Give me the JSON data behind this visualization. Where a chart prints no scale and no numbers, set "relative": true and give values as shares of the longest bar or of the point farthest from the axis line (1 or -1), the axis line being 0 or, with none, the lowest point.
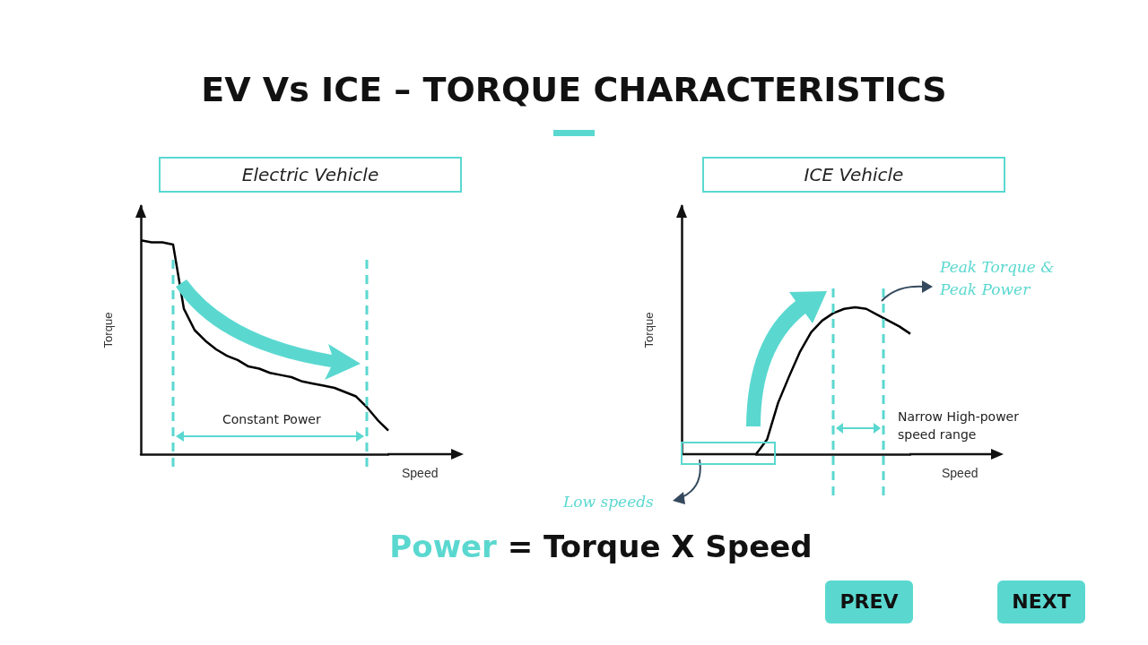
{
  "chart_data": [
    {
      "type": "line",
      "title": "Electric Vehicle",
      "xlabel": "Speed",
      "ylabel": "Torque",
      "relative": true,
      "grid": false,
      "marker": "none",
      "line_style": "solid",
      "categories": [
        null,
        null,
        null,
        null,
        null,
        null,
        null,
        null,
        null,
        null,
        null,
        null,
        null,
        null,
        null,
        null,
        null,
        null,
        null,
        null,
        null,
        null,
        null,
        null
      ],
      "series": [
        {
          "color": "#000000",
          "values": [
            1,
            0.99,
            0.99,
            0.98,
            0.68,
            0.58,
            0.53,
            0.49,
            0.46,
            0.44,
            0.41,
            0.4,
            0.38,
            0.37,
            0.36,
            0.34,
            0.33,
            0.32,
            0.31,
            0.29,
            0.27,
            0.22,
            0.16,
            0.11
          ]
        }
      ],
      "annotations": [
        "EV Vs ICE – TORQUE CHARACTERISTICS",
        "Constant Power",
        "Power = Torque X Speed"
      ]
    },
    {
      "type": "line",
      "title": "ICE Vehicle",
      "xlabel": "Speed",
      "ylabel": "Torque",
      "relative": true,
      "grid": false,
      "marker": "none",
      "line_style": "solid",
      "categories": [
        null,
        null,
        null,
        null,
        null,
        null,
        null,
        null,
        null,
        null,
        null,
        null,
        null,
        null,
        null
      ],
      "series": [
        {
          "color": "#000000",
          "values": [
            0,
            0.1,
            0.35,
            0.53,
            0.7,
            0.83,
            0.91,
            0.96,
            0.99,
            1,
            0.99,
            0.95,
            0.91,
            0.87,
            0.82
          ]
        }
      ],
      "annotations": [
        "Peak Torque & Peak Power",
        "Narrow High-power speed range",
        "Low speeds",
        "PREV",
        "NEXT"
      ]
    }
  ]
}
